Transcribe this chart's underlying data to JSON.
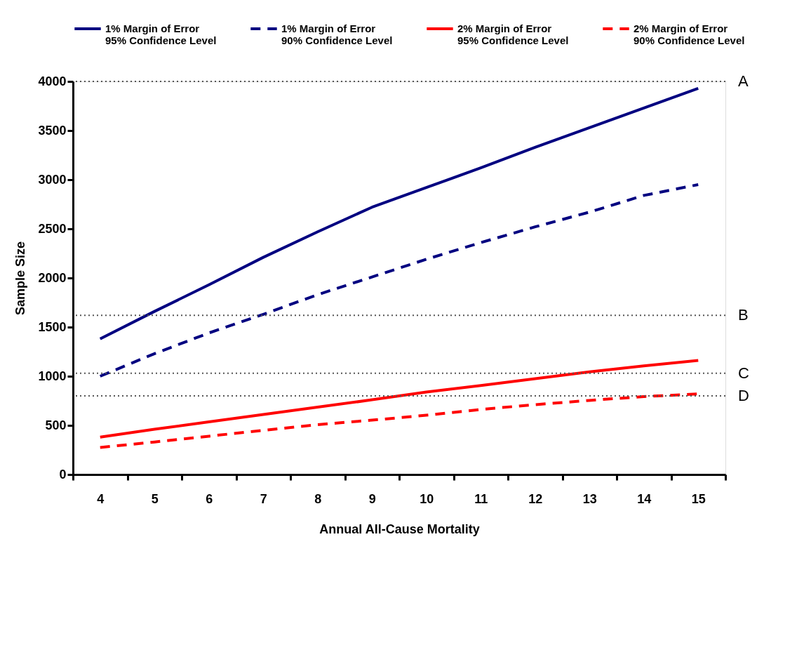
{
  "chart_data": {
    "type": "line",
    "xlabel": "Annual All-Cause Mortality",
    "ylabel": "Sample Size",
    "categories": [
      "4",
      "5",
      "6",
      "7",
      "8",
      "9",
      "10",
      "11",
      "12",
      "13",
      "14",
      "15"
    ],
    "ylim": [
      0,
      4000
    ],
    "yticks": [
      0,
      500,
      1000,
      1500,
      2000,
      2500,
      3000,
      3500,
      4000
    ],
    "grid": false,
    "legend": "top",
    "series": [
      {
        "name": "1% Margin of Error 95% Confidence Level",
        "color": "#000080",
        "line_style": "solid",
        "values": [
          1380,
          1660,
          1930,
          2210,
          2470,
          2720,
          2920,
          3120,
          3330,
          3530,
          3730,
          3930
        ]
      },
      {
        "name": "1% Margin of Error 90% Confidence Level",
        "color": "#000080",
        "line_style": "dashed",
        "values": [
          1000,
          1230,
          1440,
          1630,
          1830,
          2010,
          2190,
          2360,
          2520,
          2670,
          2840,
          2950
        ]
      },
      {
        "name": "2% Margin of Error 95% Confidence Level",
        "color": "#ff0000",
        "line_style": "solid",
        "values": [
          380,
          460,
          535,
          610,
          685,
          760,
          840,
          905,
          975,
          1045,
          1105,
          1160
        ]
      },
      {
        "name": "2% Margin of Error 90% Confidence Level",
        "color": "#ff0000",
        "line_style": "dashed",
        "values": [
          275,
          331,
          390,
          449,
          507,
          553,
          603,
          662,
          711,
          754,
          793,
          820
        ]
      }
    ],
    "ref_lines": [
      {
        "axis": "y",
        "value": 4000,
        "label": "A",
        "color": "#555555",
        "line_style": "dotted"
      },
      {
        "axis": "y",
        "value": 1620,
        "label": "B",
        "color": "#555555",
        "line_style": "dotted"
      },
      {
        "axis": "y",
        "value": 1030,
        "label": "C",
        "color": "#555555",
        "line_style": "dotted"
      },
      {
        "axis": "y",
        "value": 800,
        "label": "D",
        "color": "#555555",
        "line_style": "dotted"
      }
    ]
  }
}
